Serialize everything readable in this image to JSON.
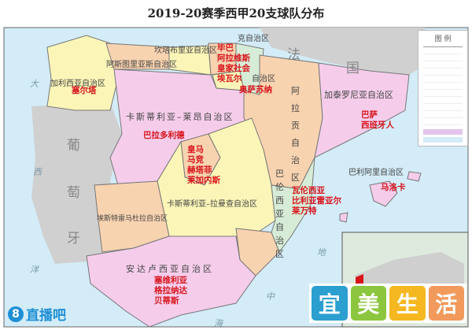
{
  "title": "2019-20赛季西甲20支球队分布",
  "colors": {
    "sea": "#d3ecf7",
    "pink": "#f5cdeb",
    "yellow": "#fbf6b8",
    "orange": "#f8d3b0",
    "green": "#d7ecd6",
    "gray": "#d0d0d0",
    "team": "#d8141c"
  },
  "countries": {
    "france_1": "法",
    "france_2": "国",
    "portugal_1": "葡",
    "portugal_2": "萄",
    "portugal_3": "牙"
  },
  "seas": {
    "atlantic_1": "大",
    "atlantic_2": "西",
    "atlantic_3": "洋",
    "med_1": "地",
    "med_2": "中",
    "med_3": "海"
  },
  "regions": {
    "galicia": "加利西亚自治区",
    "asturias": "阿斯图里亚斯自治区",
    "cantabria": "坎塔布里亚自治区",
    "basque": "克自治区",
    "navarra": "自治区",
    "cyl": "卡斯蒂利亚–莱昂自治区",
    "aragon": "阿拉贡自治区",
    "catalonia": "加泰罗尼亚自治区",
    "clm": "卡斯蒂利亚–拉曼查自治区",
    "extremadura": "埃斯特雷马杜拉自治区",
    "valencia": "巴伦西亚自治区",
    "andalusia": "安达卢西亚自治区",
    "balearic": "巴利阿里自治区"
  },
  "teams": {
    "galicia": [
      "塞尔塔"
    ],
    "basque": [
      "毕巴",
      "阿拉维斯",
      "皇家社会",
      "埃瓦尔"
    ],
    "navarra": [
      "奥萨苏纳"
    ],
    "cyl": [
      "巴拉多利德"
    ],
    "madrid": [
      "皇马",
      "马竞",
      "赫塔菲",
      "莱加内斯"
    ],
    "catalonia": [
      "巴萨",
      "西班牙人"
    ],
    "valencia": [
      "瓦伦西亚",
      "比利亚雷亚尔",
      "莱万特"
    ],
    "balearic": [
      "马洛卡"
    ],
    "andalusia": [
      "塞维利亚",
      "格拉纳达",
      "贝蒂斯"
    ]
  },
  "legend": {
    "title": "图 例"
  },
  "watermark": [
    "宜",
    "美",
    "生",
    "活"
  ],
  "logo": {
    "mark": "8",
    "text": "直播吧"
  }
}
